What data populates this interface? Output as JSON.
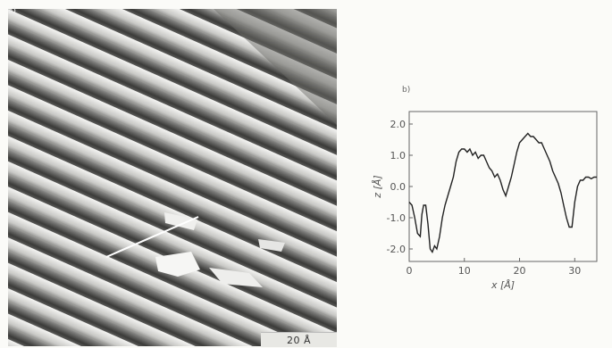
{
  "panels": {
    "a_label": "a)",
    "b_label": "b)",
    "scale_bar": "20 Å"
  },
  "chart_data": {
    "type": "line",
    "xlabel": "x [Å]",
    "ylabel": "z [Å]",
    "xlim": [
      0,
      34
    ],
    "ylim": [
      -2.4,
      2.4
    ],
    "xticks": [
      0,
      10,
      20,
      30
    ],
    "yticks": [
      -2.0,
      -1.0,
      0.0,
      1.0,
      2.0
    ],
    "ytick_labels": [
      "-2.0",
      "-1.0",
      "0.0",
      "1.0",
      "2.0"
    ],
    "grid": false,
    "series": [
      {
        "x": [
          0,
          0.5,
          1.0,
          1.5,
          2.0,
          2.3,
          2.6,
          3.0,
          3.4,
          3.8,
          4.2,
          4.6,
          5.0,
          5.5,
          6.0,
          6.5,
          7.0,
          7.5,
          8.0,
          8.5,
          9.0,
          9.5,
          10.0,
          10.5,
          11.0,
          11.5,
          12.0,
          12.5,
          13.0,
          13.5,
          14.0,
          14.5,
          15.0,
          15.5,
          16.0,
          16.5,
          17.0,
          17.5,
          18.0,
          18.5,
          19.0,
          19.5,
          20.0,
          20.5,
          21.0,
          21.5,
          22.0,
          22.5,
          23.0,
          23.5,
          24.0,
          24.5,
          25.0,
          25.5,
          26.0,
          26.5,
          27.0,
          27.5,
          28.0,
          28.5,
          29.0,
          29.5,
          30.0,
          30.5,
          31.0,
          31.5,
          32.0,
          32.5,
          33.0,
          33.5,
          34.0
        ],
        "y": [
          -0.5,
          -0.6,
          -1.0,
          -1.5,
          -1.6,
          -0.9,
          -0.6,
          -0.6,
          -1.2,
          -2.0,
          -2.1,
          -1.9,
          -2.0,
          -1.6,
          -1.0,
          -0.6,
          -0.3,
          0.0,
          0.3,
          0.8,
          1.1,
          1.2,
          1.2,
          1.1,
          1.2,
          1.0,
          1.1,
          0.9,
          1.0,
          1.0,
          0.8,
          0.6,
          0.5,
          0.3,
          0.4,
          0.2,
          -0.1,
          -0.3,
          0.0,
          0.3,
          0.7,
          1.1,
          1.4,
          1.5,
          1.6,
          1.7,
          1.6,
          1.6,
          1.5,
          1.4,
          1.4,
          1.2,
          1.0,
          0.8,
          0.5,
          0.3,
          0.1,
          -0.2,
          -0.6,
          -1.0,
          -1.3,
          -1.3,
          -0.5,
          0.0,
          0.2,
          0.2,
          0.3,
          0.3,
          0.25,
          0.3,
          0.3
        ]
      }
    ]
  }
}
